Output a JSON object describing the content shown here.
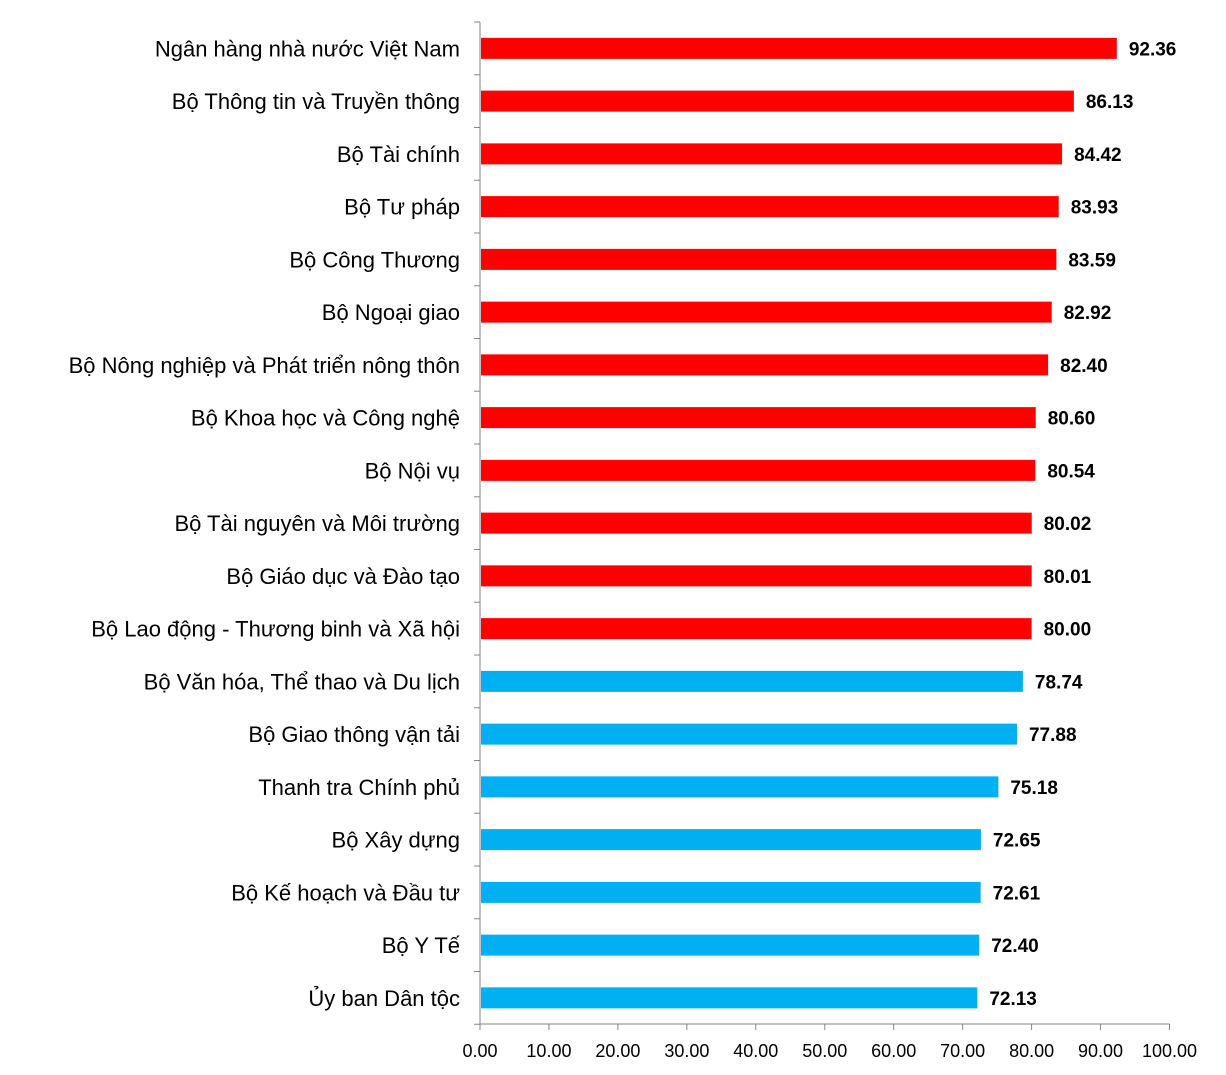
{
  "chart_data": {
    "type": "bar",
    "orientation": "horizontal",
    "title": "",
    "xlabel": "",
    "ylabel": "",
    "xlim": [
      0,
      100
    ],
    "x_ticks": [
      "0.00",
      "10.00",
      "20.00",
      "30.00",
      "40.00",
      "50.00",
      "60.00",
      "70.00",
      "80.00",
      "90.00",
      "100.00"
    ],
    "grid": false,
    "legend": "none",
    "colors": {
      "high": "#ff0000",
      "low": "#00b0f0"
    },
    "categories": [
      "Ngân hàng nhà nước Việt Nam",
      "Bộ Thông tin và Truyền thông",
      "Bộ Tài chính",
      "Bộ Tư pháp",
      "Bộ Công Thương",
      "Bộ Ngoại giao",
      "Bộ Nông nghiệp và Phát triển nông thôn",
      "Bộ Khoa học và Công nghệ",
      "Bộ Nội vụ",
      "Bộ Tài nguyên và Môi trường",
      "Bộ Giáo dục và Đào tạo",
      "Bộ Lao động - Thương binh và Xã hội",
      "Bộ Văn hóa, Thể thao và Du lịch",
      "Bộ Giao thông vận tải",
      "Thanh tra Chính phủ",
      "Bộ Xây dựng",
      "Bộ Kế hoạch và Đầu tư",
      "Bộ Y Tế",
      "Ủy ban Dân tộc"
    ],
    "values": [
      92.36,
      86.13,
      84.42,
      83.93,
      83.59,
      82.92,
      82.4,
      80.6,
      80.54,
      80.02,
      80.01,
      80.0,
      78.74,
      77.88,
      75.18,
      72.65,
      72.61,
      72.4,
      72.13
    ],
    "value_labels": [
      "92.36",
      "86.13",
      "84.42",
      "83.93",
      "83.59",
      "82.92",
      "82.40",
      "80.60",
      "80.54",
      "80.02",
      "80.01",
      "80.00",
      "78.74",
      "77.88",
      "75.18",
      "72.65",
      "72.61",
      "72.40",
      "72.13"
    ],
    "bar_colors": [
      "high",
      "high",
      "high",
      "high",
      "high",
      "high",
      "high",
      "high",
      "high",
      "high",
      "high",
      "high",
      "low",
      "low",
      "low",
      "low",
      "low",
      "low",
      "low"
    ]
  }
}
